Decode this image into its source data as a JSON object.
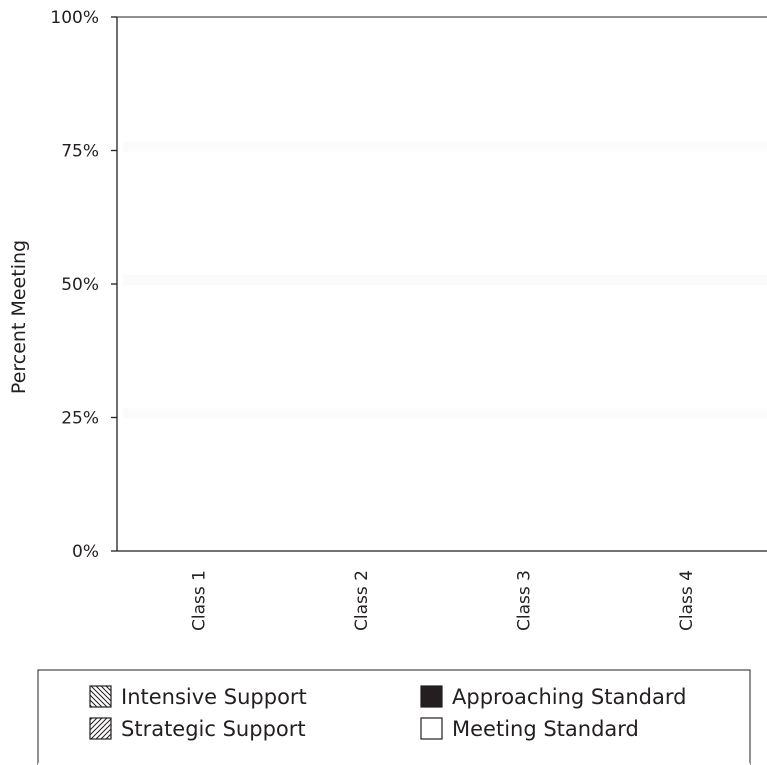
{
  "chart_data": {
    "type": "bar",
    "stacked": true,
    "categories": [
      "Class 1",
      "Class 2",
      "Class 3",
      "Class 4"
    ],
    "series": [
      {
        "name": "Intensive Support",
        "values": [
          null,
          null,
          null,
          null
        ],
        "fill": "hatch-back",
        "color": "#231f20"
      },
      {
        "name": "Strategic Support",
        "values": [
          null,
          null,
          null,
          null
        ],
        "fill": "hatch-forward",
        "color": "#231f20"
      },
      {
        "name": "Approaching Standard",
        "values": [
          null,
          null,
          null,
          null
        ],
        "fill": "solid",
        "color": "#231f20"
      },
      {
        "name": "Meeting Standard",
        "values": [
          null,
          null,
          null,
          null
        ],
        "fill": "solid",
        "color": "#ffffff"
      }
    ],
    "title": "",
    "xlabel": "",
    "ylabel": "Percent Meeting",
    "ylim": [
      0,
      100
    ],
    "yticks": [
      0,
      25,
      50,
      75,
      100
    ],
    "ytick_labels": [
      "0%",
      "25%",
      "50%",
      "75%",
      "100%"
    ],
    "grid": "faint horizontal",
    "legend_position": "bottom"
  }
}
